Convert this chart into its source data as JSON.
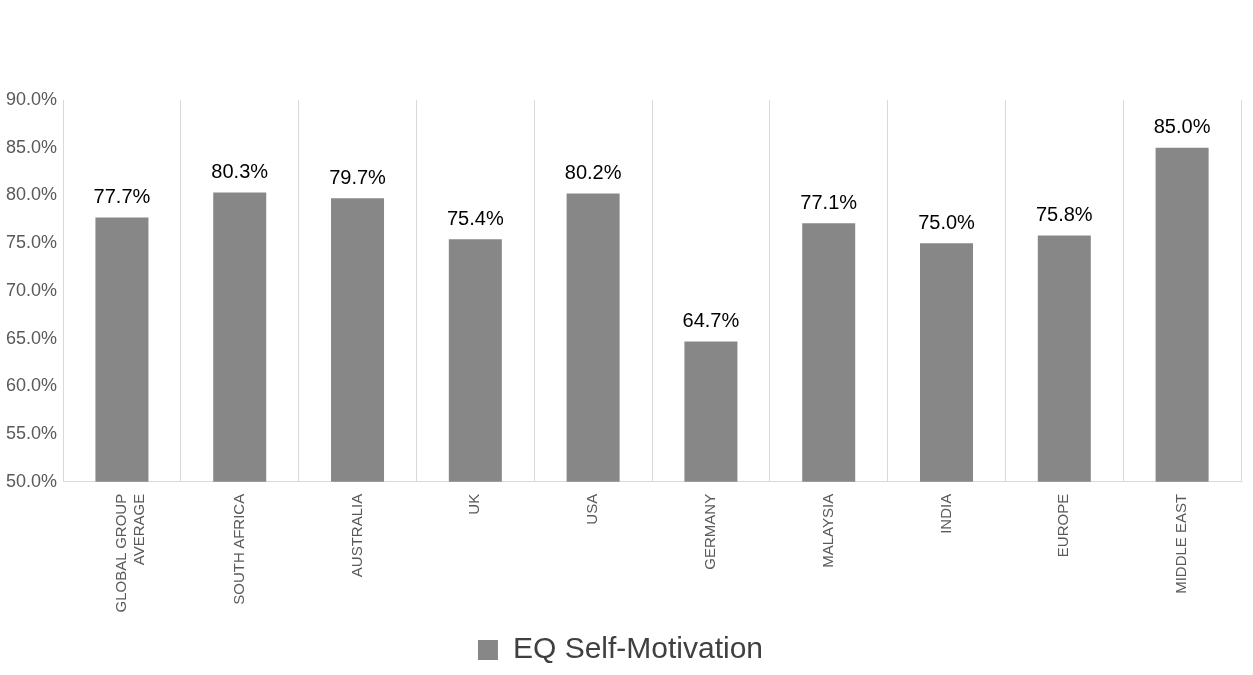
{
  "chart_data": {
    "type": "bar",
    "categories": [
      "GLOBAL GROUP AVERAGE",
      "SOUTH AFRICA",
      "AUSTRALIA",
      "UK",
      "USA",
      "GERMANY",
      "MALAYSIA",
      "INDIA",
      "EUROPE",
      "MIDDLE EAST"
    ],
    "series": [
      {
        "name": "EQ Self-Motivation",
        "color": "#878787",
        "values": [
          77.7,
          80.3,
          79.7,
          75.4,
          80.2,
          64.7,
          77.1,
          75.0,
          75.8,
          85.0
        ],
        "value_labels": [
          "77.7%",
          "80.3%",
          "79.7%",
          "75.4%",
          "80.2%",
          "64.7%",
          "77.1%",
          "75.0%",
          "75.8%",
          "85.0%"
        ]
      }
    ],
    "ylim": [
      50,
      90
    ],
    "yticks": [
      {
        "value": 50,
        "label": "50.0%"
      },
      {
        "value": 55,
        "label": "55.0%"
      },
      {
        "value": 60,
        "label": "60.0%"
      },
      {
        "value": 65,
        "label": "65.0%"
      },
      {
        "value": 70,
        "label": "70.0%"
      },
      {
        "value": 75,
        "label": "75.0%"
      },
      {
        "value": 80,
        "label": "80.0%"
      },
      {
        "value": 85,
        "label": "85.0%"
      },
      {
        "value": 90,
        "label": "90.0%"
      }
    ],
    "grid": "x",
    "legend": "bottom"
  }
}
